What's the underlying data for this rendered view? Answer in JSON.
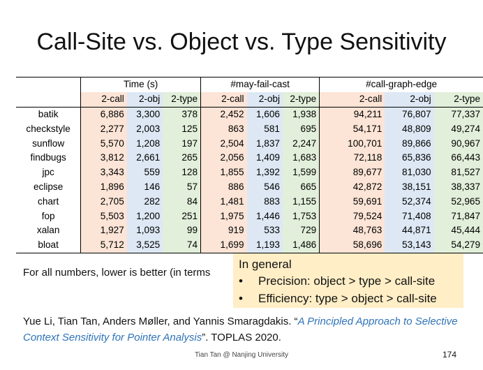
{
  "slide": {
    "title": "Call-Site vs. Object vs. Type Sensitivity",
    "footer": "Tian Tan @ Nanjing University",
    "page_number": "174"
  },
  "table": {
    "groups": [
      "Time (s)",
      "#may-fail-cast",
      "#call-graph-edge"
    ],
    "subheaders": [
      "2-call",
      "2-obj",
      "2-type",
      "2-call",
      "2-obj",
      "2-type",
      "2-call",
      "2-obj",
      "2-type"
    ],
    "rows": [
      {
        "name": "batik",
        "values": [
          "6,886",
          "3,300",
          "378",
          "2,452",
          "1,606",
          "1,938",
          "94,211",
          "76,807",
          "77,337"
        ]
      },
      {
        "name": "checkstyle",
        "values": [
          "2,277",
          "2,003",
          "125",
          "863",
          "581",
          "695",
          "54,171",
          "48,809",
          "49,274"
        ]
      },
      {
        "name": "sunflow",
        "values": [
          "5,570",
          "1,208",
          "197",
          "2,504",
          "1,837",
          "2,247",
          "100,701",
          "89,866",
          "90,967"
        ]
      },
      {
        "name": "findbugs",
        "values": [
          "3,812",
          "2,661",
          "265",
          "2,056",
          "1,409",
          "1,683",
          "72,118",
          "65,836",
          "66,443"
        ]
      },
      {
        "name": "jpc",
        "values": [
          "3,343",
          "559",
          "128",
          "1,855",
          "1,392",
          "1,599",
          "89,677",
          "81,030",
          "81,527"
        ]
      },
      {
        "name": "eclipse",
        "values": [
          "1,896",
          "146",
          "57",
          "886",
          "546",
          "665",
          "42,872",
          "38,151",
          "38,337"
        ]
      },
      {
        "name": "chart",
        "values": [
          "2,705",
          "282",
          "84",
          "1,481",
          "883",
          "1,155",
          "59,691",
          "52,374",
          "52,965"
        ]
      },
      {
        "name": "fop",
        "values": [
          "5,503",
          "1,200",
          "251",
          "1,975",
          "1,446",
          "1,753",
          "79,524",
          "71,408",
          "71,847"
        ]
      },
      {
        "name": "xalan",
        "values": [
          "1,927",
          "1,093",
          "99",
          "919",
          "533",
          "729",
          "48,763",
          "44,871",
          "45,444"
        ]
      },
      {
        "name": "bloat",
        "values": [
          "5,712",
          "3,525",
          "74",
          "1,699",
          "1,193",
          "1,486",
          "58,696",
          "53,143",
          "54,279"
        ]
      }
    ]
  },
  "note": "For all numbers, lower is better (in terms",
  "general": {
    "heading": "In general",
    "bullet": "•",
    "items": [
      "Precision: object > type > call-site",
      "Efficiency: type > object > call-site"
    ]
  },
  "citation": {
    "authors": "Yue Li, Tian Tan, Anders Møller, and Yannis Smaragdakis. “",
    "paper_title": "A Principled Approach to Selective Context Sensitivity for Pointer Analysis",
    "venue": "”. TOPLAS 2020."
  }
}
